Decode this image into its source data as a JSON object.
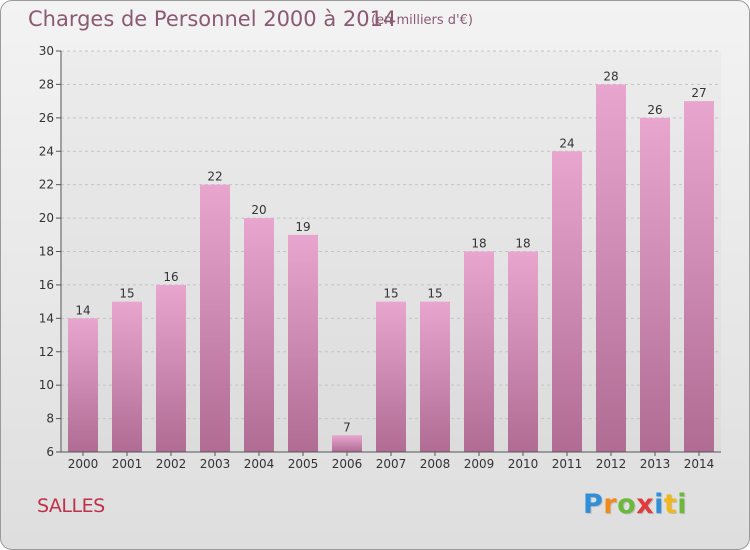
{
  "header": {
    "title": "Charges de Personnel 2000 à 2014",
    "unit_note": "(en milliers d'€)"
  },
  "footer": {
    "place": "SALLES",
    "brand_letters": [
      "P",
      "r",
      "o",
      "x",
      "i",
      "t",
      "i"
    ],
    "brand_colors": [
      "#2f8fd8",
      "#f08a1c",
      "#6cb83a",
      "#e03a3a",
      "#2f8fd8",
      "#f0b81c",
      "#6cb83a"
    ]
  },
  "chart_data": {
    "type": "bar",
    "categories": [
      "2000",
      "2001",
      "2002",
      "2003",
      "2004",
      "2005",
      "2006",
      "2007",
      "2008",
      "2009",
      "2010",
      "2011",
      "2012",
      "2013",
      "2014"
    ],
    "values": [
      14,
      15,
      16,
      22,
      20,
      19,
      7,
      15,
      15,
      18,
      18,
      24,
      28,
      26,
      27
    ],
    "ylim": [
      6,
      30
    ],
    "yticks": [
      6,
      8,
      10,
      12,
      14,
      16,
      18,
      20,
      22,
      24,
      26,
      28,
      30
    ],
    "grid": "horizontal dashed",
    "bar_color_top": "#e8a6cf",
    "bar_color_bottom": "#b06c93"
  }
}
